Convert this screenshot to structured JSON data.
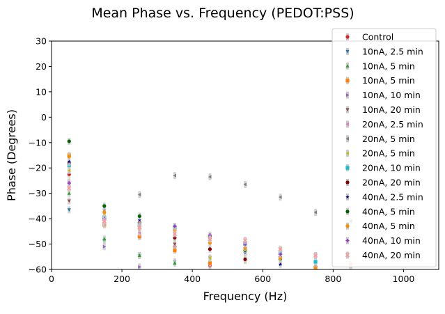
{
  "chart_data": {
    "type": "scatter",
    "title": "Mean Phase vs. Frequency (PEDOT:PSS)",
    "xlabel": "Frequency (Hz)",
    "ylabel": "Phase (Degrees)",
    "xlim": [
      0,
      1100
    ],
    "ylim": [
      -60,
      30
    ],
    "xticks": [
      "0",
      "200",
      "400",
      "600",
      "800",
      "1000"
    ],
    "yticks": [
      "30",
      "20",
      "10",
      "0",
      "−10",
      "−20",
      "−30",
      "−40",
      "−50",
      "−60"
    ],
    "grid": false,
    "legend_position": "top-right",
    "x": [
      50,
      150,
      250,
      350,
      450,
      550,
      650,
      750,
      850
    ],
    "series": [
      {
        "name": "Control",
        "color": "#d62728",
        "marker": "circle",
        "values": [
          -22.5,
          -40.5,
          -47,
          -51,
          -58.5,
          null,
          null,
          null,
          null
        ]
      },
      {
        "name": "10nA, 2.5 min",
        "color": "#1f77b4",
        "marker": "triangle-down",
        "values": [
          -36.5,
          -48.5,
          -54.5,
          -57,
          null,
          null,
          null,
          null,
          null
        ]
      },
      {
        "name": "10nA, 5 min",
        "color": "#2ca02c",
        "marker": "triangle-up",
        "values": [
          -30,
          -48,
          -54.5,
          -57.5,
          null,
          null,
          null,
          null,
          null
        ]
      },
      {
        "name": "10nA, 5 min",
        "color": "#ff7f0e",
        "marker": "square",
        "values": [
          -15,
          -42.5,
          -47,
          -52.5,
          -57.5,
          null,
          null,
          null,
          null
        ]
      },
      {
        "name": "10nA, 10 min",
        "color": "#9467bd",
        "marker": "triangle-right",
        "values": [
          -25.5,
          -51,
          -59,
          null,
          null,
          null,
          null,
          null,
          null
        ]
      },
      {
        "name": "10nA, 20 min",
        "color": "#8c564b",
        "marker": "triangle-down",
        "values": [
          -33,
          -39.5,
          -44,
          -50,
          -55.5,
          null,
          null,
          null,
          null
        ]
      },
      {
        "name": "20nA, 2.5 min",
        "color": "#e377c2",
        "marker": "triangle-left",
        "values": [
          -27,
          -42,
          -45.5,
          -45,
          -47.5,
          -49.5,
          -52.5,
          -54.5,
          -58
        ]
      },
      {
        "name": "20nA, 5 min",
        "color": "#7f7f7f",
        "marker": "triangle-left",
        "values": [
          null,
          null,
          -30.5,
          -23,
          -23.5,
          -26.5,
          -31.5,
          -37.5,
          -41
        ]
      },
      {
        "name": "20nA, 5 min",
        "color": "#bcbd22",
        "marker": "triangle-left",
        "values": [
          -21,
          -39.5,
          -43.5,
          -46,
          -55.5,
          -56.5,
          -57.5,
          -58.5,
          null
        ]
      },
      {
        "name": "20nA, 10 min",
        "color": "#17becf",
        "marker": "square",
        "values": [
          -19,
          -39.5,
          -42,
          -44,
          -47,
          -50,
          -53.5,
          -57,
          null
        ]
      },
      {
        "name": "20nA, 20 min",
        "color": "#800000",
        "marker": "circle",
        "values": [
          -18,
          -40.5,
          -41.5,
          -47.5,
          -52,
          -56,
          -55,
          -59,
          null
        ]
      },
      {
        "name": "40nA, 2.5 min",
        "color": "#00008b",
        "marker": "star",
        "values": [
          -17.5,
          -36.5,
          -40.5,
          -43.5,
          -48,
          -53.5,
          -58,
          null,
          null
        ]
      },
      {
        "name": "40nA, 5 min",
        "color": "#006400",
        "marker": "circle",
        "values": [
          -9.5,
          -35,
          -39,
          -43,
          -47,
          -52.5,
          -56,
          -60,
          null
        ]
      },
      {
        "name": "40nA, 5 min",
        "color": "#ff8c00",
        "marker": "circle",
        "values": [
          -15.5,
          -37.5,
          -44,
          -44.5,
          -49.5,
          -51.5,
          -55.5,
          -59.5,
          null
        ]
      },
      {
        "name": "40nA, 10 min",
        "color": "#9932cc",
        "marker": "plus",
        "values": [
          -26,
          -40,
          -43,
          -43,
          -46.5,
          -50,
          -54,
          null,
          null
        ]
      },
      {
        "name": "40nA, 20 min",
        "color": "#ff9999",
        "marker": "x",
        "values": [
          -28,
          -41,
          -43.5,
          -46,
          -48,
          -48.5,
          -52,
          -54.5,
          -58.5
        ]
      }
    ]
  }
}
